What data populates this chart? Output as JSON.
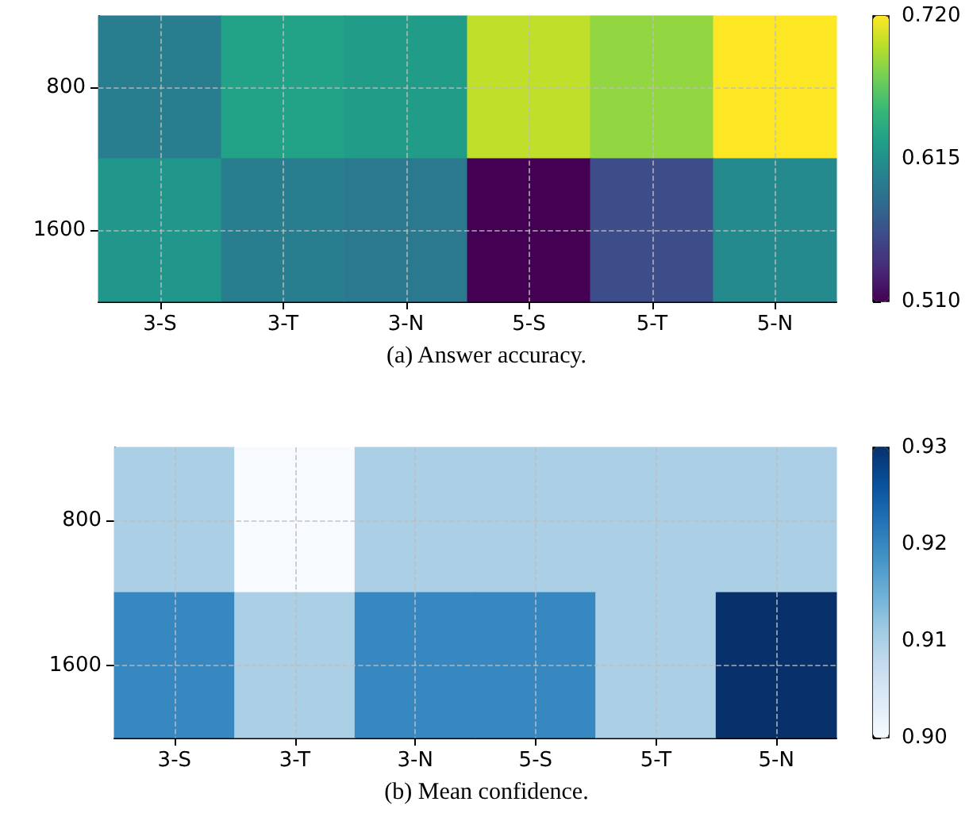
{
  "chart_data": [
    {
      "type": "heatmap",
      "title": "(a) Answer accuracy.",
      "categories": [
        "3-S",
        "3-T",
        "3-N",
        "5-S",
        "5-T",
        "5-N"
      ],
      "y_categories": [
        "800",
        "1600"
      ],
      "cells": [
        [
          0.6,
          0.63,
          0.625,
          0.7,
          0.685,
          0.72
        ],
        [
          0.62,
          0.6,
          0.595,
          0.51,
          0.56,
          0.61
        ]
      ],
      "clim": [
        0.51,
        0.72
      ],
      "cticks": [
        {
          "value": 0.51,
          "label": "0.510"
        },
        {
          "value": 0.615,
          "label": "0.615"
        },
        {
          "value": 0.72,
          "label": "0.720"
        }
      ],
      "grid": true
    },
    {
      "type": "heatmap",
      "title": "(b) Mean confidence.",
      "categories": [
        "3-S",
        "3-T",
        "3-N",
        "5-S",
        "5-T",
        "5-N"
      ],
      "y_categories": [
        "800",
        "1600"
      ],
      "cells": [
        [
          0.91,
          0.9,
          0.91,
          0.91,
          0.91,
          0.91
        ],
        [
          0.92,
          0.91,
          0.92,
          0.92,
          0.91,
          0.93
        ]
      ],
      "clim": [
        0.9,
        0.93
      ],
      "cticks": [
        {
          "value": 0.9,
          "label": "0.90"
        },
        {
          "value": 0.91,
          "label": "0.91"
        },
        {
          "value": 0.92,
          "label": "0.92"
        },
        {
          "value": 0.93,
          "label": "0.93"
        }
      ],
      "grid": true
    }
  ]
}
